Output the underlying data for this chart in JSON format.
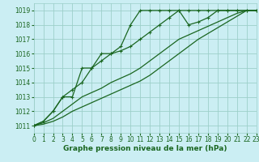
{
  "bg_color": "#cbeef3",
  "grid_color": "#9dcfca",
  "line_color": "#1a6620",
  "xlabel": "Graphe pression niveau de la mer (hPa)",
  "xlabel_fontsize": 6.5,
  "tick_fontsize": 5.5,
  "xmin": 0,
  "xmax": 23,
  "ymin": 1010.5,
  "ymax": 1019.5,
  "yticks": [
    1011,
    1012,
    1013,
    1014,
    1015,
    1016,
    1017,
    1018,
    1019
  ],
  "xticks": [
    0,
    1,
    2,
    3,
    4,
    5,
    6,
    7,
    8,
    9,
    10,
    11,
    12,
    13,
    14,
    15,
    16,
    17,
    18,
    19,
    20,
    21,
    22,
    23
  ],
  "series": [
    {
      "x": [
        0,
        1,
        2,
        3,
        4,
        5,
        6,
        7,
        8,
        9,
        10,
        11,
        12,
        13,
        14,
        15,
        16,
        17,
        18,
        19,
        20,
        21,
        22,
        23
      ],
      "y": [
        1011,
        1011.3,
        1012,
        1013,
        1013,
        1015,
        1015,
        1016,
        1016,
        1016.5,
        1018,
        1019,
        1019,
        1019,
        1019,
        1019,
        1019,
        1019,
        1019,
        1019,
        1019,
        1019,
        1019,
        1019
      ],
      "has_markers": true
    },
    {
      "x": [
        0,
        1,
        2,
        3,
        4,
        5,
        6,
        7,
        8,
        9,
        10,
        11,
        12,
        13,
        14,
        15,
        16,
        17,
        18,
        19,
        20,
        21,
        22,
        23
      ],
      "y": [
        1011,
        1011.3,
        1012,
        1013,
        1013.5,
        1014,
        1015,
        1015.5,
        1016,
        1016.2,
        1016.5,
        1017,
        1017.5,
        1018,
        1018.5,
        1019,
        1018.0,
        1018.2,
        1018.5,
        1019,
        1019,
        1019,
        1019,
        1019
      ],
      "has_markers": true
    },
    {
      "x": [
        0,
        1,
        2,
        3,
        4,
        5,
        6,
        7,
        8,
        9,
        10,
        11,
        12,
        13,
        14,
        15,
        16,
        17,
        18,
        19,
        20,
        21,
        22,
        23
      ],
      "y": [
        1011,
        1011.2,
        1011.5,
        1012,
        1012.5,
        1013,
        1013.3,
        1013.6,
        1014,
        1014.3,
        1014.6,
        1015,
        1015.5,
        1016,
        1016.5,
        1017,
        1017.3,
        1017.6,
        1017.9,
        1018.2,
        1018.5,
        1018.8,
        1019,
        1019
      ],
      "has_markers": false
    },
    {
      "x": [
        0,
        1,
        2,
        3,
        4,
        5,
        6,
        7,
        8,
        9,
        10,
        11,
        12,
        13,
        14,
        15,
        16,
        17,
        18,
        19,
        20,
        21,
        22,
        23
      ],
      "y": [
        1011,
        1011.1,
        1011.3,
        1011.6,
        1012,
        1012.3,
        1012.6,
        1012.9,
        1013.2,
        1013.5,
        1013.8,
        1014.1,
        1014.5,
        1015,
        1015.5,
        1016,
        1016.5,
        1017,
        1017.4,
        1017.8,
        1018.2,
        1018.6,
        1019,
        1019
      ],
      "has_markers": false
    }
  ]
}
